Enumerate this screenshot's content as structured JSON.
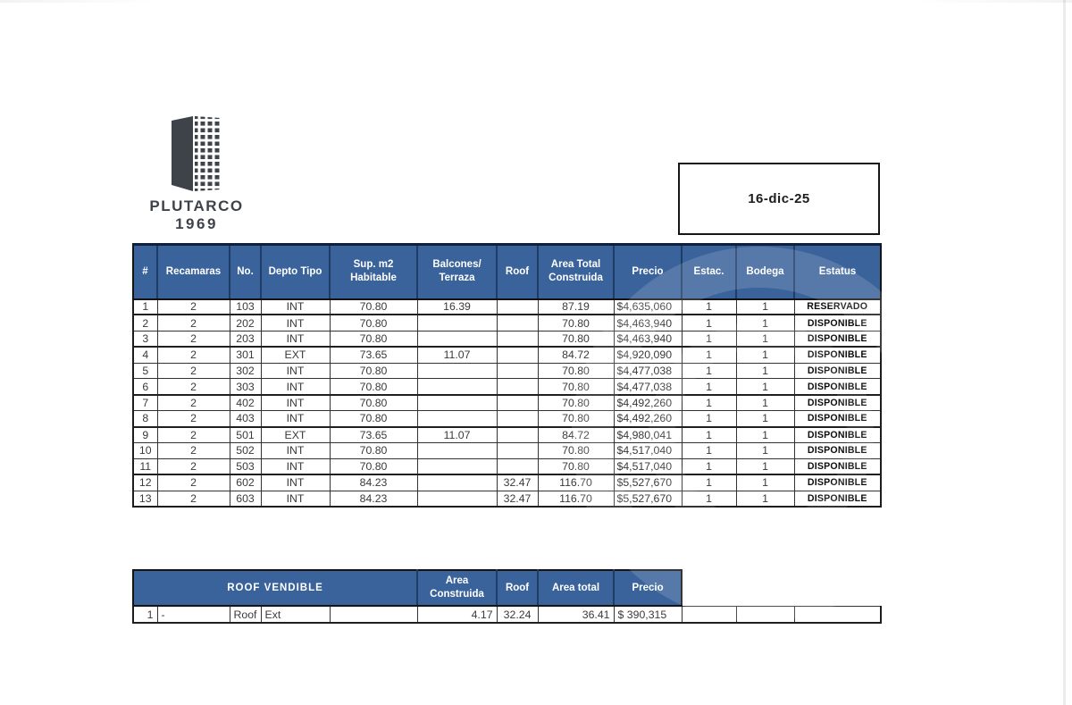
{
  "brand": {
    "name": "PLUTARCO",
    "year": "1969"
  },
  "date_box": {
    "value": "16-dic-25"
  },
  "main_table": {
    "headers": [
      "#",
      "Recamaras",
      "No.",
      "Depto Tipo",
      "Sup. m2\nHabitable",
      "Balcones/\nTerraza",
      "Roof",
      "Area Total\nConstruida",
      "Precio",
      "Estac.",
      "Bodega",
      "Estatus"
    ],
    "rows": [
      [
        "1",
        "2",
        "103",
        "INT",
        "70.80",
        "16.39",
        "",
        "87.19",
        "$4,635,060",
        "1",
        "1",
        "RESERVADO"
      ],
      [
        "2",
        "2",
        "202",
        "INT",
        "70.80",
        "",
        "",
        "70.80",
        "$4,463,940",
        "1",
        "1",
        "DISPONIBLE"
      ],
      [
        "3",
        "2",
        "203",
        "INT",
        "70.80",
        "",
        "",
        "70.80",
        "$4,463,940",
        "1",
        "1",
        "DISPONIBLE"
      ],
      [
        "4",
        "2",
        "301",
        "EXT",
        "73.65",
        "11.07",
        "",
        "84.72",
        "$4,920,090",
        "1",
        "1",
        "DISPONIBLE"
      ],
      [
        "5",
        "2",
        "302",
        "INT",
        "70.80",
        "",
        "",
        "70.80",
        "$4,477,038",
        "1",
        "1",
        "DISPONIBLE"
      ],
      [
        "6",
        "2",
        "303",
        "INT",
        "70.80",
        "",
        "",
        "70.80",
        "$4,477,038",
        "1",
        "1",
        "DISPONIBLE"
      ],
      [
        "7",
        "2",
        "402",
        "INT",
        "70.80",
        "",
        "",
        "70.80",
        "$4,492,260",
        "1",
        "1",
        "DISPONIBLE"
      ],
      [
        "8",
        "2",
        "403",
        "INT",
        "70.80",
        "",
        "",
        "70.80",
        "$4,492,260",
        "1",
        "1",
        "DISPONIBLE"
      ],
      [
        "9",
        "2",
        "501",
        "EXT",
        "73.65",
        "11.07",
        "",
        "84.72",
        "$4,980,041",
        "1",
        "1",
        "DISPONIBLE"
      ],
      [
        "10",
        "2",
        "502",
        "INT",
        "70.80",
        "",
        "",
        "70.80",
        "$4,517,040",
        "1",
        "1",
        "DISPONIBLE"
      ],
      [
        "11",
        "2",
        "503",
        "INT",
        "70.80",
        "",
        "",
        "70.80",
        "$4,517,040",
        "1",
        "1",
        "DISPONIBLE"
      ],
      [
        "12",
        "2",
        "602",
        "INT",
        "84.23",
        "",
        "32.47",
        "116.70",
        "$5,527,670",
        "1",
        "1",
        "DISPONIBLE"
      ],
      [
        "13",
        "2",
        "603",
        "INT",
        "84.23",
        "",
        "32.47",
        "116.70",
        "$5,527,670",
        "1",
        "1",
        "DISPONIBLE"
      ]
    ],
    "group_end_rows": [
      0,
      2,
      5,
      7,
      10,
      12
    ]
  },
  "roof_table": {
    "merged_header": "ROOF VENDIBLE",
    "headers": [
      "Area\nConstruida",
      "Roof",
      "Area total",
      "Precio"
    ],
    "row": [
      "1",
      "-",
      "Roof",
      "Ext",
      "",
      "4.17",
      "32.24",
      "36.41",
      "$ 390,315",
      "",
      "",
      ""
    ]
  },
  "colors": {
    "header_blue": "#3B639B",
    "header_divider": "#1E3C66",
    "border_dark": "#1c1c1c",
    "brand_gray": "#3e434a"
  }
}
